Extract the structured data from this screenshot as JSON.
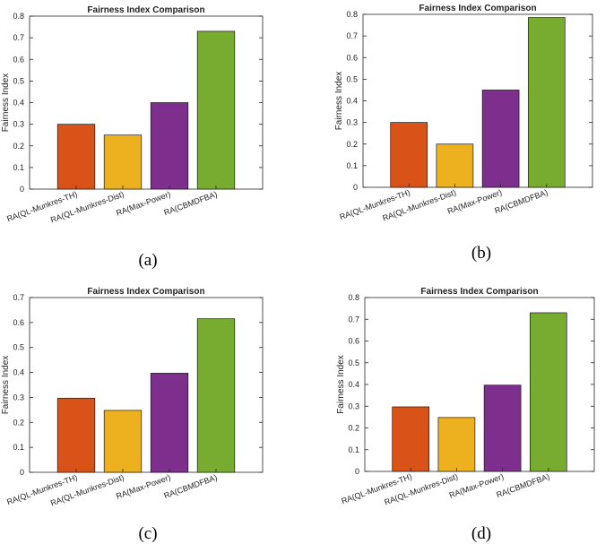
{
  "colors": [
    "#d95319",
    "#edb120",
    "#7e2f8e",
    "#77ac30"
  ],
  "chart_data": [
    {
      "type": "bar",
      "caption": "(a)",
      "title": "Fairness Index Comparison",
      "ylabel": "Fairness Index",
      "xlabel": "",
      "categories": [
        "RA(QL-Munkres-TH)",
        "RA(QL-Munkres-Dist)",
        "RA(Max-Power)",
        "RA(CBMDFBA)"
      ],
      "values": [
        0.3,
        0.25,
        0.4,
        0.73
      ],
      "ylim": [
        0,
        0.8
      ],
      "yticks": [
        "0",
        "0.1",
        "0.2",
        "0.3",
        "0.4",
        "0.5",
        "0.6",
        "0.7",
        "0.8"
      ],
      "grid": false
    },
    {
      "type": "bar",
      "caption": "(b)",
      "title": "Fairness Index Comparison",
      "ylabel": "Fairness Index",
      "xlabel": "",
      "categories": [
        "RA(QL-Munkres-TH)",
        "RA(QL-Munkres-Dist)",
        "RA(Max-Power)",
        "RA(CBMDFBA)"
      ],
      "values": [
        0.3,
        0.2,
        0.45,
        0.785
      ],
      "ylim": [
        0,
        0.8
      ],
      "yticks": [
        "0",
        "0.1",
        "0.2",
        "0.3",
        "0.4",
        "0.5",
        "0.6",
        "0.7",
        "0.8"
      ],
      "grid": false
    },
    {
      "type": "bar",
      "caption": "(c)",
      "title": "Fairness Index Comparison",
      "ylabel": "Fairness Index",
      "xlabel": "",
      "categories": [
        "RA(QL-Munkres-TH)",
        "RA(QL-Munkres-Dist)",
        "RA(Max-Power)",
        "RA(CBMDFBA)"
      ],
      "values": [
        0.297,
        0.248,
        0.397,
        0.615
      ],
      "ylim": [
        0,
        0.7
      ],
      "yticks": [
        "0",
        "0.1",
        "0.2",
        "0.3",
        "0.4",
        "0.5",
        "0.6",
        "0.7"
      ],
      "grid": false
    },
    {
      "type": "bar",
      "caption": "(d)",
      "title": "Fairness Index Comparison",
      "ylabel": "Fairness Index",
      "xlabel": "",
      "categories": [
        "RA(QL-Munkres-TH)",
        "RA(QL-Munkres-Dist)",
        "RA(Max-Power)",
        "RA(CBMDFBA)"
      ],
      "values": [
        0.297,
        0.248,
        0.397,
        0.73
      ],
      "ylim": [
        0,
        0.8
      ],
      "yticks": [
        "0",
        "0.1",
        "0.2",
        "0.3",
        "0.4",
        "0.5",
        "0.6",
        "0.7",
        "0.8"
      ],
      "grid": false
    }
  ]
}
